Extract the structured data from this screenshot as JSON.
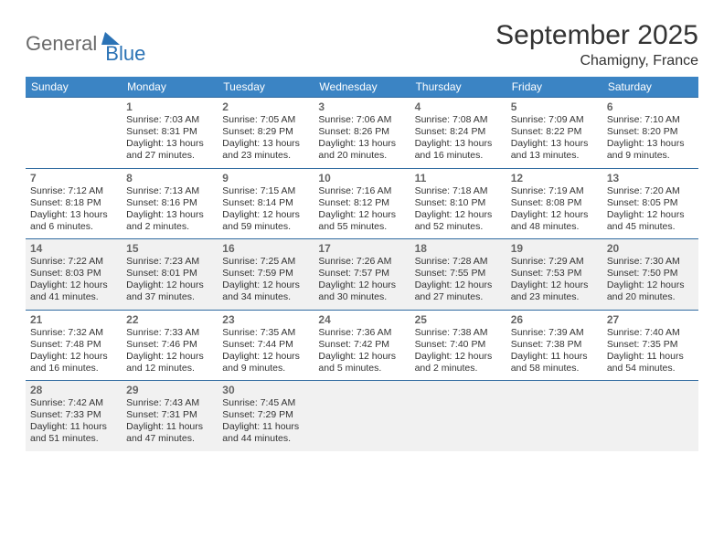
{
  "logo": {
    "word1": "General",
    "word2": "Blue"
  },
  "title": "September 2025",
  "location": "Chamigny, France",
  "colors": {
    "header_bg": "#3b84c4",
    "header_text": "#ffffff",
    "rule": "#2f6aa0",
    "shaded_bg": "#f1f1f1",
    "body_text": "#333333",
    "daynum_text": "#666666",
    "logo_gray": "#6a6a6a",
    "logo_blue": "#2a72b5"
  },
  "dow": [
    "Sunday",
    "Monday",
    "Tuesday",
    "Wednesday",
    "Thursday",
    "Friday",
    "Saturday"
  ],
  "weeks": [
    {
      "shaded": false,
      "days": [
        null,
        {
          "n": "1",
          "sr": "Sunrise: 7:03 AM",
          "ss": "Sunset: 8:31 PM",
          "d1": "Daylight: 13 hours",
          "d2": "and 27 minutes."
        },
        {
          "n": "2",
          "sr": "Sunrise: 7:05 AM",
          "ss": "Sunset: 8:29 PM",
          "d1": "Daylight: 13 hours",
          "d2": "and 23 minutes."
        },
        {
          "n": "3",
          "sr": "Sunrise: 7:06 AM",
          "ss": "Sunset: 8:26 PM",
          "d1": "Daylight: 13 hours",
          "d2": "and 20 minutes."
        },
        {
          "n": "4",
          "sr": "Sunrise: 7:08 AM",
          "ss": "Sunset: 8:24 PM",
          "d1": "Daylight: 13 hours",
          "d2": "and 16 minutes."
        },
        {
          "n": "5",
          "sr": "Sunrise: 7:09 AM",
          "ss": "Sunset: 8:22 PM",
          "d1": "Daylight: 13 hours",
          "d2": "and 13 minutes."
        },
        {
          "n": "6",
          "sr": "Sunrise: 7:10 AM",
          "ss": "Sunset: 8:20 PM",
          "d1": "Daylight: 13 hours",
          "d2": "and 9 minutes."
        }
      ]
    },
    {
      "shaded": false,
      "days": [
        {
          "n": "7",
          "sr": "Sunrise: 7:12 AM",
          "ss": "Sunset: 8:18 PM",
          "d1": "Daylight: 13 hours",
          "d2": "and 6 minutes."
        },
        {
          "n": "8",
          "sr": "Sunrise: 7:13 AM",
          "ss": "Sunset: 8:16 PM",
          "d1": "Daylight: 13 hours",
          "d2": "and 2 minutes."
        },
        {
          "n": "9",
          "sr": "Sunrise: 7:15 AM",
          "ss": "Sunset: 8:14 PM",
          "d1": "Daylight: 12 hours",
          "d2": "and 59 minutes."
        },
        {
          "n": "10",
          "sr": "Sunrise: 7:16 AM",
          "ss": "Sunset: 8:12 PM",
          "d1": "Daylight: 12 hours",
          "d2": "and 55 minutes."
        },
        {
          "n": "11",
          "sr": "Sunrise: 7:18 AM",
          "ss": "Sunset: 8:10 PM",
          "d1": "Daylight: 12 hours",
          "d2": "and 52 minutes."
        },
        {
          "n": "12",
          "sr": "Sunrise: 7:19 AM",
          "ss": "Sunset: 8:08 PM",
          "d1": "Daylight: 12 hours",
          "d2": "and 48 minutes."
        },
        {
          "n": "13",
          "sr": "Sunrise: 7:20 AM",
          "ss": "Sunset: 8:05 PM",
          "d1": "Daylight: 12 hours",
          "d2": "and 45 minutes."
        }
      ]
    },
    {
      "shaded": true,
      "days": [
        {
          "n": "14",
          "sr": "Sunrise: 7:22 AM",
          "ss": "Sunset: 8:03 PM",
          "d1": "Daylight: 12 hours",
          "d2": "and 41 minutes."
        },
        {
          "n": "15",
          "sr": "Sunrise: 7:23 AM",
          "ss": "Sunset: 8:01 PM",
          "d1": "Daylight: 12 hours",
          "d2": "and 37 minutes."
        },
        {
          "n": "16",
          "sr": "Sunrise: 7:25 AM",
          "ss": "Sunset: 7:59 PM",
          "d1": "Daylight: 12 hours",
          "d2": "and 34 minutes."
        },
        {
          "n": "17",
          "sr": "Sunrise: 7:26 AM",
          "ss": "Sunset: 7:57 PM",
          "d1": "Daylight: 12 hours",
          "d2": "and 30 minutes."
        },
        {
          "n": "18",
          "sr": "Sunrise: 7:28 AM",
          "ss": "Sunset: 7:55 PM",
          "d1": "Daylight: 12 hours",
          "d2": "and 27 minutes."
        },
        {
          "n": "19",
          "sr": "Sunrise: 7:29 AM",
          "ss": "Sunset: 7:53 PM",
          "d1": "Daylight: 12 hours",
          "d2": "and 23 minutes."
        },
        {
          "n": "20",
          "sr": "Sunrise: 7:30 AM",
          "ss": "Sunset: 7:50 PM",
          "d1": "Daylight: 12 hours",
          "d2": "and 20 minutes."
        }
      ]
    },
    {
      "shaded": false,
      "days": [
        {
          "n": "21",
          "sr": "Sunrise: 7:32 AM",
          "ss": "Sunset: 7:48 PM",
          "d1": "Daylight: 12 hours",
          "d2": "and 16 minutes."
        },
        {
          "n": "22",
          "sr": "Sunrise: 7:33 AM",
          "ss": "Sunset: 7:46 PM",
          "d1": "Daylight: 12 hours",
          "d2": "and 12 minutes."
        },
        {
          "n": "23",
          "sr": "Sunrise: 7:35 AM",
          "ss": "Sunset: 7:44 PM",
          "d1": "Daylight: 12 hours",
          "d2": "and 9 minutes."
        },
        {
          "n": "24",
          "sr": "Sunrise: 7:36 AM",
          "ss": "Sunset: 7:42 PM",
          "d1": "Daylight: 12 hours",
          "d2": "and 5 minutes."
        },
        {
          "n": "25",
          "sr": "Sunrise: 7:38 AM",
          "ss": "Sunset: 7:40 PM",
          "d1": "Daylight: 12 hours",
          "d2": "and 2 minutes."
        },
        {
          "n": "26",
          "sr": "Sunrise: 7:39 AM",
          "ss": "Sunset: 7:38 PM",
          "d1": "Daylight: 11 hours",
          "d2": "and 58 minutes."
        },
        {
          "n": "27",
          "sr": "Sunrise: 7:40 AM",
          "ss": "Sunset: 7:35 PM",
          "d1": "Daylight: 11 hours",
          "d2": "and 54 minutes."
        }
      ]
    },
    {
      "shaded": true,
      "days": [
        {
          "n": "28",
          "sr": "Sunrise: 7:42 AM",
          "ss": "Sunset: 7:33 PM",
          "d1": "Daylight: 11 hours",
          "d2": "and 51 minutes."
        },
        {
          "n": "29",
          "sr": "Sunrise: 7:43 AM",
          "ss": "Sunset: 7:31 PM",
          "d1": "Daylight: 11 hours",
          "d2": "and 47 minutes."
        },
        {
          "n": "30",
          "sr": "Sunrise: 7:45 AM",
          "ss": "Sunset: 7:29 PM",
          "d1": "Daylight: 11 hours",
          "d2": "and 44 minutes."
        },
        null,
        null,
        null,
        null
      ]
    }
  ]
}
